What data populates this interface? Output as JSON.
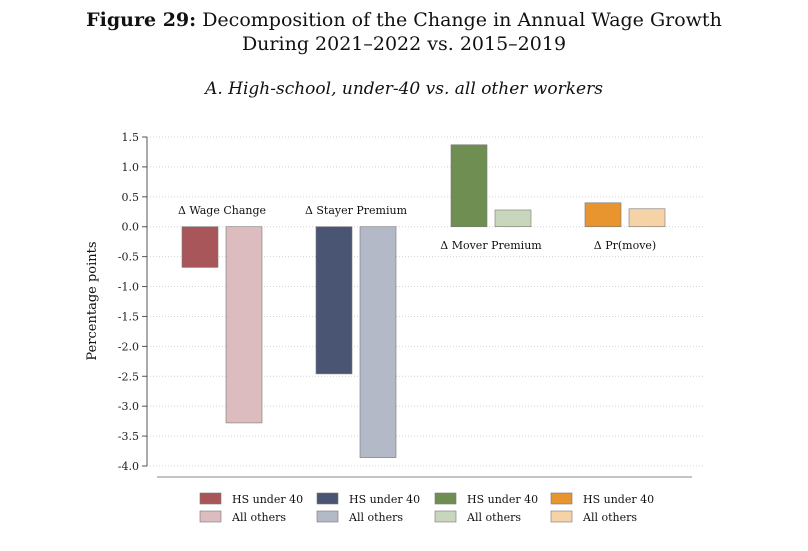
{
  "figure": {
    "label": "Figure 29:",
    "title_line1": "Decomposition of the Change in Annual Wage Growth",
    "title_line2": "During 2021–2022 vs. 2015–2019",
    "subtitle": "A. High-school, under-40 vs. all other workers"
  },
  "chart_data": {
    "type": "bar",
    "title": "A. High-school, under-40 vs. all other workers",
    "ylabel": "Percentage points",
    "xlabel": "",
    "ylim": [
      -4.0,
      1.5
    ],
    "yticks": [
      1.5,
      1.0,
      0.5,
      0.0,
      -0.5,
      -1.0,
      -1.5,
      -2.0,
      -2.5,
      -3.0,
      -3.5,
      -4.0
    ],
    "ytick_labels": [
      "1.5",
      "1.0",
      "0.5",
      "0.0",
      "-0.5",
      "-1.0",
      "-1.5",
      "-2.0",
      "-2.5",
      "-3.0",
      "-3.5",
      "-4.0"
    ],
    "grid": true,
    "legend_position": "bottom",
    "groups": [
      {
        "name": "Δ Wage Change",
        "label_position": "above",
        "series": [
          {
            "name": "HS under 40",
            "value": -0.68,
            "color": "#a9565a"
          },
          {
            "name": "All others",
            "value": -3.28,
            "color": "#dcbcbf"
          }
        ]
      },
      {
        "name": "Δ Stayer Premium",
        "label_position": "above",
        "series": [
          {
            "name": "HS under 40",
            "value": -2.46,
            "color": "#4a5573"
          },
          {
            "name": "All others",
            "value": -3.86,
            "color": "#b4b9c7"
          }
        ]
      },
      {
        "name": "Δ Mover Premium",
        "label_position": "below",
        "series": [
          {
            "name": "HS under 40",
            "value": 1.37,
            "color": "#6f8f52"
          },
          {
            "name": "All others",
            "value": 0.28,
            "color": "#c8d6bc"
          }
        ]
      },
      {
        "name": "Δ Pr(move)",
        "label_position": "below",
        "series": [
          {
            "name": "HS under 40",
            "value": 0.4,
            "color": "#e8952f"
          },
          {
            "name": "All others",
            "value": 0.3,
            "color": "#f6d3a6"
          }
        ]
      }
    ]
  }
}
